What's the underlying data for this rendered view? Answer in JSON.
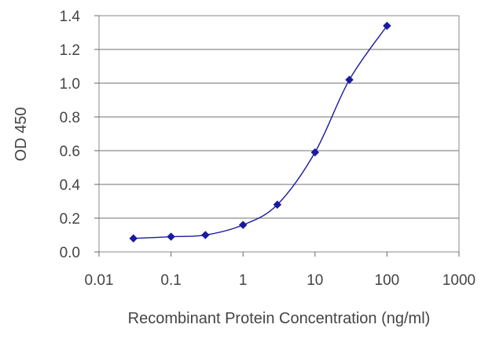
{
  "chart_data": {
    "type": "line",
    "title": "",
    "xlabel": "Recombinant Protein Concentration (ng/ml)",
    "ylabel": "OD 450",
    "x_scale": "log",
    "xlim": [
      0.01,
      1000
    ],
    "ylim": [
      0.0,
      1.4
    ],
    "x_ticks": [
      "0.01",
      "0.1",
      "1",
      "10",
      "100",
      "1000"
    ],
    "y_ticks": [
      "0.0",
      "0.2",
      "0.4",
      "0.6",
      "0.8",
      "1.0",
      "1.2",
      "1.4"
    ],
    "grid": "horizontal",
    "legend": "none",
    "series": [
      {
        "color": "#1a1aa0",
        "x": [
          0.03,
          0.1,
          0.3,
          1,
          3,
          10,
          30,
          100
        ],
        "y": [
          0.08,
          0.09,
          0.1,
          0.16,
          0.28,
          0.59,
          1.02,
          1.34
        ]
      }
    ]
  }
}
